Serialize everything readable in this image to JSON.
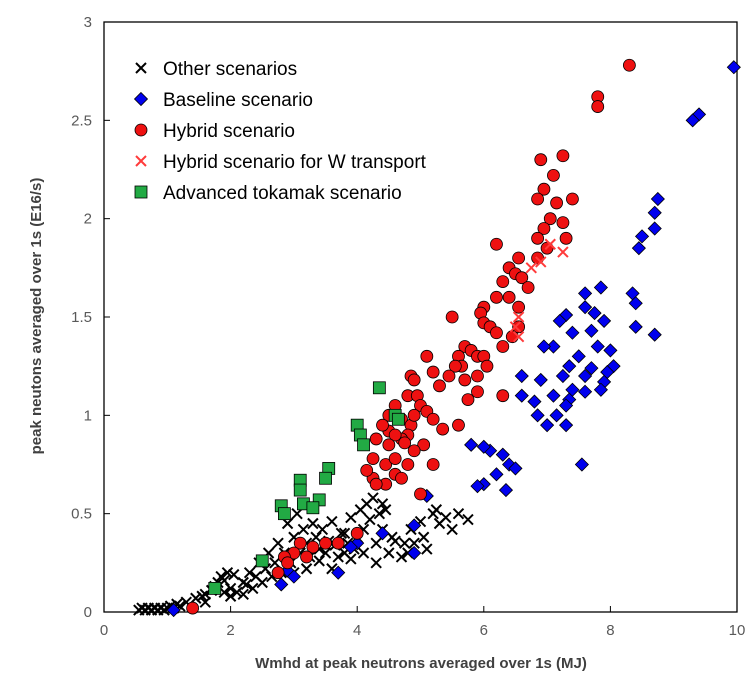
{
  "chart_data": {
    "type": "scatter",
    "xlabel": "Wmhd at peak neutrons averaged over 1s (MJ)",
    "ylabel": "peak neutons averaged over 1s (E16/s)",
    "xlim": [
      0,
      10
    ],
    "ylim": [
      0,
      3
    ],
    "x_ticks": [
      "0",
      "2",
      "4",
      "6",
      "8",
      "10"
    ],
    "y_ticks": [
      "0",
      "0.5",
      "1",
      "1.5",
      "2",
      "2.5",
      "3"
    ],
    "grid": false,
    "legend_position": "top-left",
    "series": [
      {
        "name": "Other scenarios",
        "marker": "x",
        "color": "#000000",
        "points": [
          [
            0.55,
            0.01
          ],
          [
            0.6,
            0.02
          ],
          [
            0.65,
            0.01
          ],
          [
            0.7,
            0.02
          ],
          [
            0.75,
            0.01
          ],
          [
            0.8,
            0.02
          ],
          [
            0.85,
            0.01
          ],
          [
            0.9,
            0.02
          ],
          [
            0.95,
            0.01
          ],
          [
            1.0,
            0.02
          ],
          [
            1.05,
            0.03
          ],
          [
            1.1,
            0.02
          ],
          [
            1.15,
            0.04
          ],
          [
            1.2,
            0.03
          ],
          [
            1.3,
            0.05
          ],
          [
            1.45,
            0.07
          ],
          [
            1.55,
            0.08
          ],
          [
            1.6,
            0.09
          ],
          [
            1.7,
            0.11
          ],
          [
            1.75,
            0.13
          ],
          [
            1.8,
            0.15
          ],
          [
            1.85,
            0.18
          ],
          [
            1.9,
            0.16
          ],
          [
            1.95,
            0.2
          ],
          [
            2.0,
            0.12
          ],
          [
            2.05,
            0.19
          ],
          [
            2.1,
            0.1
          ],
          [
            2.2,
            0.15
          ],
          [
            2.25,
            0.14
          ],
          [
            2.3,
            0.2
          ],
          [
            2.35,
            0.12
          ],
          [
            2.4,
            0.18
          ],
          [
            2.45,
            0.25
          ],
          [
            2.5,
            0.15
          ],
          [
            2.55,
            0.22
          ],
          [
            2.6,
            0.3
          ],
          [
            2.65,
            0.18
          ],
          [
            2.7,
            0.25
          ],
          [
            2.75,
            0.35
          ],
          [
            2.8,
            0.2
          ],
          [
            2.85,
            0.3
          ],
          [
            2.9,
            0.45
          ],
          [
            2.95,
            0.25
          ],
          [
            3.0,
            0.38
          ],
          [
            3.05,
            0.5
          ],
          [
            3.1,
            0.3
          ],
          [
            3.15,
            0.42
          ],
          [
            3.2,
            0.35
          ],
          [
            3.25,
            0.28
          ],
          [
            3.3,
            0.45
          ],
          [
            3.35,
            0.38
          ],
          [
            3.4,
            0.32
          ],
          [
            3.45,
            0.42
          ],
          [
            3.5,
            0.3
          ],
          [
            3.55,
            0.36
          ],
          [
            3.6,
            0.46
          ],
          [
            3.65,
            0.34
          ],
          [
            3.7,
            0.28
          ],
          [
            3.75,
            0.4
          ],
          [
            3.8,
            0.3
          ],
          [
            3.85,
            0.35
          ],
          [
            3.9,
            0.48
          ],
          [
            3.95,
            0.32
          ],
          [
            4.0,
            0.38
          ],
          [
            4.05,
            0.52
          ],
          [
            4.1,
            0.42
          ],
          [
            4.15,
            0.55
          ],
          [
            4.2,
            0.47
          ],
          [
            4.25,
            0.58
          ],
          [
            4.3,
            0.35
          ],
          [
            4.35,
            0.5
          ],
          [
            4.4,
            0.42
          ],
          [
            4.45,
            0.52
          ],
          [
            4.5,
            0.3
          ],
          [
            4.55,
            0.38
          ],
          [
            4.6,
            0.36
          ],
          [
            4.7,
            0.28
          ],
          [
            4.75,
            0.35
          ],
          [
            4.8,
            0.3
          ],
          [
            4.85,
            0.42
          ],
          [
            4.9,
            0.35
          ],
          [
            5.0,
            0.46
          ],
          [
            5.05,
            0.38
          ],
          [
            5.1,
            0.32
          ],
          [
            5.2,
            0.5
          ],
          [
            5.25,
            0.52
          ],
          [
            5.3,
            0.45
          ],
          [
            5.4,
            0.48
          ],
          [
            5.5,
            0.42
          ],
          [
            5.6,
            0.5
          ],
          [
            5.75,
            0.47
          ],
          [
            3.0,
            0.2
          ],
          [
            3.2,
            0.22
          ],
          [
            3.4,
            0.26
          ],
          [
            3.6,
            0.22
          ],
          [
            3.8,
            0.4
          ],
          [
            3.9,
            0.27
          ],
          [
            4.1,
            0.3
          ],
          [
            4.3,
            0.25
          ],
          [
            2.0,
            0.08
          ],
          [
            2.2,
            0.09
          ],
          [
            1.6,
            0.05
          ],
          [
            1.9,
            0.1
          ],
          [
            4.4,
            0.55
          ]
        ]
      },
      {
        "name": "Baseline scenario",
        "marker": "diamond",
        "color": "#0000ee",
        "points": [
          [
            9.95,
            2.77
          ],
          [
            9.4,
            2.53
          ],
          [
            9.3,
            2.5
          ],
          [
            8.75,
            2.1
          ],
          [
            8.7,
            2.03
          ],
          [
            8.7,
            1.95
          ],
          [
            8.5,
            1.91
          ],
          [
            8.45,
            1.85
          ],
          [
            8.7,
            1.41
          ],
          [
            8.4,
            1.45
          ],
          [
            8.35,
            1.62
          ],
          [
            8.4,
            1.57
          ],
          [
            7.85,
            1.65
          ],
          [
            7.6,
            1.62
          ],
          [
            7.6,
            1.55
          ],
          [
            7.9,
            1.48
          ],
          [
            7.75,
            1.52
          ],
          [
            7.7,
            1.43
          ],
          [
            7.8,
            1.35
          ],
          [
            8.0,
            1.33
          ],
          [
            7.3,
            1.51
          ],
          [
            7.4,
            1.42
          ],
          [
            7.5,
            1.3
          ],
          [
            7.35,
            1.25
          ],
          [
            7.2,
            1.48
          ],
          [
            7.7,
            1.24
          ],
          [
            7.6,
            1.2
          ],
          [
            8.05,
            1.25
          ],
          [
            7.95,
            1.22
          ],
          [
            7.9,
            1.17
          ],
          [
            7.85,
            1.13
          ],
          [
            7.6,
            1.12
          ],
          [
            7.4,
            1.13
          ],
          [
            7.35,
            1.08
          ],
          [
            7.3,
            1.05
          ],
          [
            7.25,
            1.2
          ],
          [
            7.1,
            1.1
          ],
          [
            7.1,
            1.35
          ],
          [
            6.95,
            1.35
          ],
          [
            6.9,
            1.18
          ],
          [
            6.8,
            1.07
          ],
          [
            6.85,
            1.0
          ],
          [
            7.0,
            0.95
          ],
          [
            7.3,
            0.95
          ],
          [
            7.15,
            1.0
          ],
          [
            7.55,
            0.75
          ],
          [
            6.6,
            1.2
          ],
          [
            6.6,
            1.1
          ],
          [
            6.3,
            0.8
          ],
          [
            6.1,
            0.82
          ],
          [
            6.0,
            0.84
          ],
          [
            5.8,
            0.85
          ],
          [
            6.2,
            0.7
          ],
          [
            6.4,
            0.75
          ],
          [
            6.5,
            0.73
          ],
          [
            6.35,
            0.62
          ],
          [
            6.0,
            0.65
          ],
          [
            5.9,
            0.64
          ],
          [
            4.9,
            0.3
          ],
          [
            4.4,
            0.4
          ],
          [
            4.0,
            0.35
          ],
          [
            3.9,
            0.33
          ],
          [
            3.7,
            0.2
          ],
          [
            2.9,
            0.21
          ],
          [
            3.0,
            0.18
          ],
          [
            2.8,
            0.14
          ],
          [
            1.1,
            0.01
          ],
          [
            5.1,
            0.59
          ],
          [
            4.9,
            0.44
          ]
        ]
      },
      {
        "name": "Hybrid scenario",
        "marker": "circle",
        "color": "#ee1111",
        "points": [
          [
            8.3,
            2.78
          ],
          [
            7.8,
            2.62
          ],
          [
            7.8,
            2.57
          ],
          [
            7.25,
            2.32
          ],
          [
            6.9,
            2.3
          ],
          [
            7.1,
            2.22
          ],
          [
            6.95,
            2.15
          ],
          [
            6.85,
            2.1
          ],
          [
            7.4,
            2.1
          ],
          [
            7.15,
            2.08
          ],
          [
            7.05,
            2.0
          ],
          [
            7.25,
            1.98
          ],
          [
            6.95,
            1.95
          ],
          [
            6.85,
            1.9
          ],
          [
            7.3,
            1.9
          ],
          [
            7.0,
            1.85
          ],
          [
            6.85,
            1.8
          ],
          [
            6.55,
            1.8
          ],
          [
            6.2,
            1.87
          ],
          [
            6.4,
            1.75
          ],
          [
            6.5,
            1.72
          ],
          [
            6.6,
            1.7
          ],
          [
            6.3,
            1.68
          ],
          [
            6.7,
            1.65
          ],
          [
            6.2,
            1.6
          ],
          [
            6.4,
            1.6
          ],
          [
            6.55,
            1.55
          ],
          [
            6.0,
            1.55
          ],
          [
            5.95,
            1.52
          ],
          [
            6.0,
            1.47
          ],
          [
            6.1,
            1.45
          ],
          [
            6.2,
            1.42
          ],
          [
            6.45,
            1.4
          ],
          [
            6.3,
            1.35
          ],
          [
            6.55,
            1.45
          ],
          [
            5.5,
            1.5
          ],
          [
            5.7,
            1.35
          ],
          [
            5.6,
            1.3
          ],
          [
            5.65,
            1.25
          ],
          [
            5.8,
            1.33
          ],
          [
            5.9,
            1.3
          ],
          [
            6.0,
            1.3
          ],
          [
            6.05,
            1.25
          ],
          [
            5.55,
            1.25
          ],
          [
            5.1,
            1.3
          ],
          [
            5.2,
            1.22
          ],
          [
            5.3,
            1.15
          ],
          [
            5.45,
            1.2
          ],
          [
            5.7,
            1.18
          ],
          [
            5.9,
            1.2
          ],
          [
            5.9,
            1.12
          ],
          [
            5.75,
            1.08
          ],
          [
            4.85,
            1.2
          ],
          [
            4.9,
            1.18
          ],
          [
            4.8,
            1.1
          ],
          [
            4.95,
            1.1
          ],
          [
            5.0,
            1.05
          ],
          [
            5.1,
            1.02
          ],
          [
            5.2,
            0.98
          ],
          [
            5.35,
            0.93
          ],
          [
            4.6,
            1.05
          ],
          [
            4.5,
            1.0
          ],
          [
            4.7,
            0.98
          ],
          [
            4.85,
            0.95
          ],
          [
            4.9,
            1.0
          ],
          [
            4.8,
            0.9
          ],
          [
            4.7,
            0.88
          ],
          [
            4.5,
            0.92
          ],
          [
            4.6,
            0.9
          ],
          [
            4.5,
            0.85
          ],
          [
            4.4,
            0.95
          ],
          [
            4.3,
            0.88
          ],
          [
            4.25,
            0.78
          ],
          [
            4.45,
            0.75
          ],
          [
            4.6,
            0.78
          ],
          [
            4.8,
            0.75
          ],
          [
            4.6,
            0.7
          ],
          [
            4.7,
            0.68
          ],
          [
            4.45,
            0.65
          ],
          [
            4.25,
            0.68
          ],
          [
            4.15,
            0.72
          ],
          [
            4.3,
            0.65
          ],
          [
            5.05,
            0.85
          ],
          [
            5.2,
            0.75
          ],
          [
            4.0,
            0.4
          ],
          [
            3.7,
            0.35
          ],
          [
            3.5,
            0.35
          ],
          [
            3.3,
            0.33
          ],
          [
            3.1,
            0.35
          ],
          [
            3.0,
            0.3
          ],
          [
            2.85,
            0.28
          ],
          [
            2.75,
            0.2
          ],
          [
            2.9,
            0.25
          ],
          [
            1.4,
            0.02
          ],
          [
            3.2,
            0.28
          ],
          [
            4.9,
            0.82
          ],
          [
            5.0,
            0.6
          ],
          [
            4.75,
            0.86
          ],
          [
            5.6,
            0.95
          ],
          [
            6.3,
            1.1
          ]
        ]
      },
      {
        "name": "Hybrid scenario for W transport",
        "marker": "x",
        "color": "#ff3b3b",
        "points": [
          [
            7.25,
            1.83
          ],
          [
            7.05,
            1.87
          ],
          [
            6.9,
            1.78
          ],
          [
            6.75,
            1.75
          ],
          [
            6.55,
            1.5
          ],
          [
            6.5,
            1.45
          ],
          [
            6.55,
            1.4
          ]
        ]
      },
      {
        "name": "Advanced tokamak scenario",
        "marker": "square",
        "color": "#22aa44",
        "points": [
          [
            4.35,
            1.14
          ],
          [
            4.6,
            1.0
          ],
          [
            4.65,
            0.98
          ],
          [
            4.0,
            0.95
          ],
          [
            4.05,
            0.9
          ],
          [
            4.1,
            0.85
          ],
          [
            3.55,
            0.73
          ],
          [
            3.5,
            0.68
          ],
          [
            3.1,
            0.67
          ],
          [
            3.1,
            0.62
          ],
          [
            3.4,
            0.57
          ],
          [
            3.15,
            0.55
          ],
          [
            3.3,
            0.53
          ],
          [
            2.8,
            0.54
          ],
          [
            2.85,
            0.5
          ],
          [
            2.5,
            0.26
          ],
          [
            1.75,
            0.12
          ]
        ]
      }
    ]
  }
}
